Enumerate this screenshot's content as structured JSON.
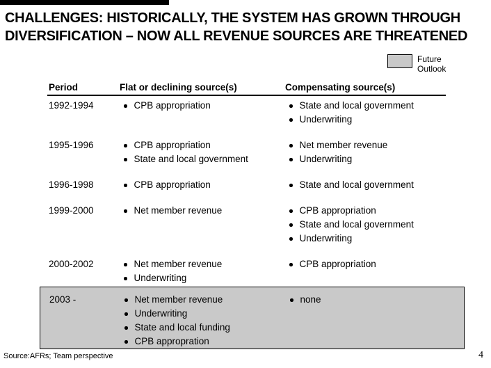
{
  "title": {
    "line1": "CHALLENGES: HISTORICALLY, THE SYSTEM HAS GROWN THROUGH",
    "line2": "DIVERSIFICATION – NOW ALL REVENUE SOURCES ARE THREATENED"
  },
  "legend": {
    "label": "Future Outlook"
  },
  "table": {
    "headers": [
      "Period",
      "Flat or declining source(s)",
      "Compensating source(s)"
    ],
    "rows": [
      {
        "period": "1992-1994",
        "highlighted": false,
        "flat": [
          "CPB appropriation"
        ],
        "compensating": [
          "State and local government",
          "Underwriting"
        ]
      },
      {
        "period": "1995-1996",
        "highlighted": false,
        "flat": [
          "CPB appropriation",
          "State and local government"
        ],
        "compensating": [
          "Net member revenue",
          "Underwriting"
        ]
      },
      {
        "period": "1996-1998",
        "highlighted": false,
        "flat": [
          "CPB appropriation"
        ],
        "compensating": [
          "State and local government"
        ]
      },
      {
        "period": "1999-2000",
        "highlighted": false,
        "flat": [
          "Net member revenue"
        ],
        "compensating": [
          "CPB appropriation",
          "State and local government",
          "Underwriting"
        ]
      },
      {
        "period": "2000-2002",
        "highlighted": false,
        "flat": [
          "Net member revenue",
          "Underwriting"
        ],
        "compensating": [
          "CPB appropriation"
        ]
      },
      {
        "period": "2003 -",
        "highlighted": true,
        "flat": [
          "Net member revenue",
          "Underwriting",
          "State and local funding",
          "CPB appropration"
        ],
        "compensating": [
          "none"
        ]
      }
    ]
  },
  "footer": {
    "source": "Source:AFRs; Team perspective",
    "page_number": "4"
  },
  "icons": {
    "bullet": "•"
  },
  "colors": {
    "highlight_gray": "#c9c9c9",
    "text_black": "#000000"
  }
}
